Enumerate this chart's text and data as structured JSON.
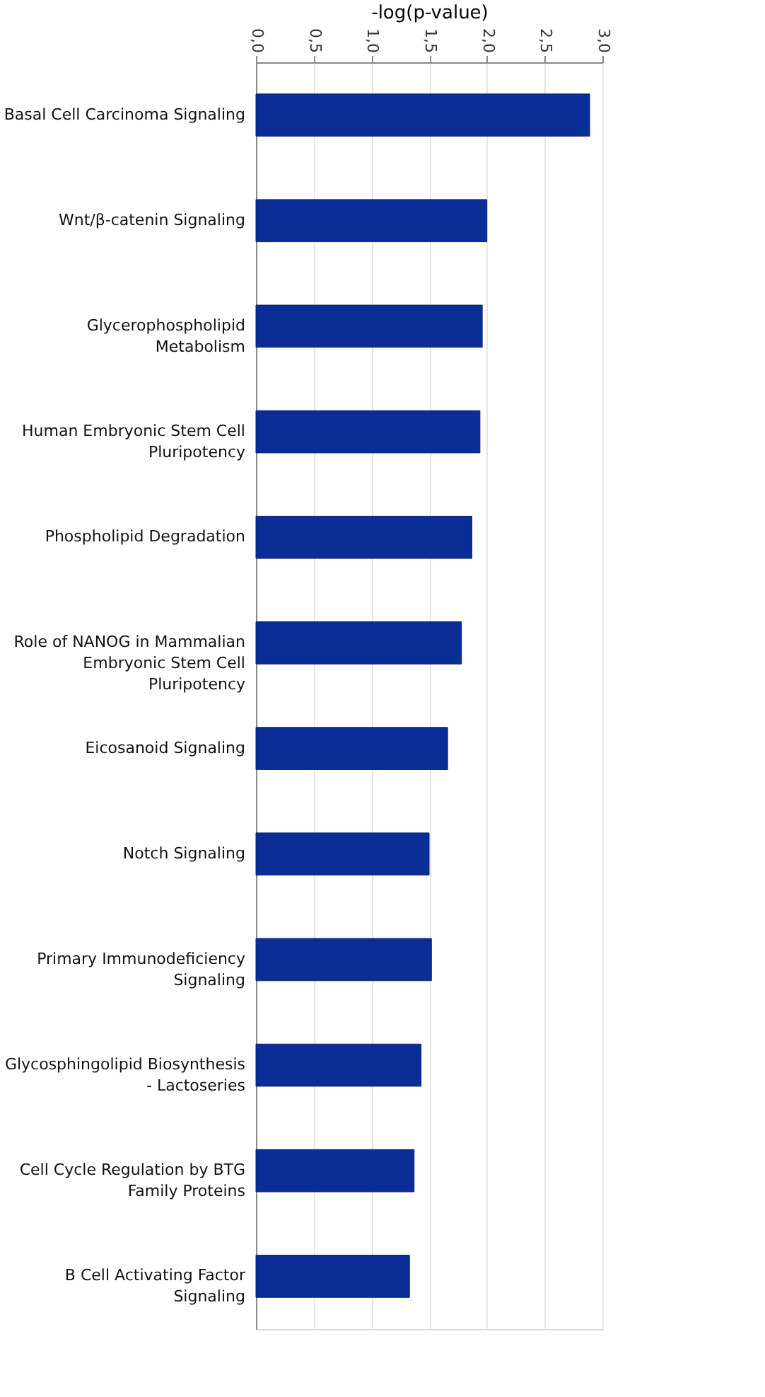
{
  "chart_data": {
    "type": "bar",
    "orientation": "horizontal",
    "xlabel": "-log(p-value)",
    "categories": [
      "Basal Cell Carcinoma Signaling",
      "Wnt/β-catenin Signaling",
      "Glycerophospholipid\nMetabolism",
      "Human Embryonic Stem Cell\nPluripotency",
      "Phospholipid Degradation",
      "Role of NANOG in Mammalian\nEmbryonic Stem Cell\nPluripotency",
      "Eicosanoid Signaling",
      "Notch Signaling",
      "Primary Immunodeficiency\nSignaling",
      "Glycosphingolipid Biosynthesis\n- Lactoseries",
      "Cell Cycle Regulation by BTG\nFamily Proteins",
      "B Cell Activating Factor\nSignaling"
    ],
    "values": [
      2.89,
      2.0,
      1.96,
      1.94,
      1.87,
      1.78,
      1.66,
      1.5,
      1.52,
      1.43,
      1.37,
      1.33
    ],
    "color": "#0a2e96",
    "xlim": [
      0,
      3.0
    ],
    "xticks": [
      {
        "value": 0,
        "label": "0,0"
      },
      {
        "value": 0.5,
        "label": "0,5"
      },
      {
        "value": 1.0,
        "label": "1,0"
      },
      {
        "value": 1.5,
        "label": "1,5"
      },
      {
        "value": 2.0,
        "label": "2,0"
      },
      {
        "value": 2.5,
        "label": "2,5"
      },
      {
        "value": 3.0,
        "label": "3,0"
      }
    ],
    "grid": "x"
  }
}
